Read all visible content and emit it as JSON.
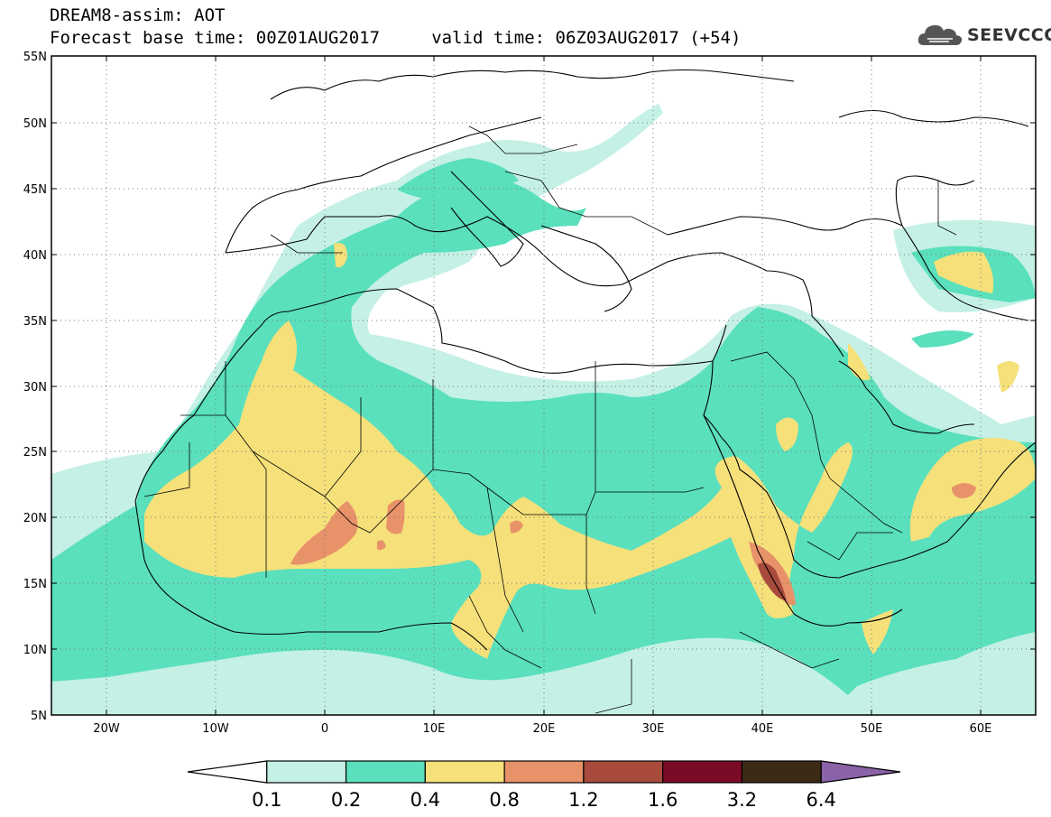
{
  "header": {
    "line1": "DREAM8-assim: AOT",
    "line2": "Forecast base time: 00Z01AUG2017     valid time: 06Z03AUG2017 (+54)",
    "logo_text": "SEEVCCC"
  },
  "map": {
    "lat_labels": [
      "55N",
      "50N",
      "45N",
      "40N",
      "35N",
      "30N",
      "25N",
      "20N",
      "15N",
      "10N",
      "5N"
    ],
    "lon_labels": [
      "20W",
      "10W",
      "0",
      "10E",
      "20E",
      "30E",
      "40E",
      "50E",
      "60E"
    ],
    "lon_range": [
      -25,
      65
    ],
    "lat_range": [
      5,
      55
    ],
    "grid": "dotted"
  },
  "legend": {
    "labels": [
      "0.1",
      "0.2",
      "0.4",
      "0.8",
      "1.2",
      "1.6",
      "3.2",
      "6.4"
    ],
    "colors": [
      "#ffffff",
      "#c5f0e6",
      "#5ae0bc",
      "#f5e07a",
      "#e8926a",
      "#a84a3c",
      "#7b0a26",
      "#3a2a16",
      "#8a62a8"
    ]
  },
  "colors": {
    "aot_0_1_0_2": "#c5f0e6",
    "aot_0_2_0_4": "#5ae0bc",
    "aot_0_4_0_8": "#f5e07a",
    "aot_0_8_1_2": "#e8926a",
    "aot_1_2_1_6": "#a84a3c"
  }
}
